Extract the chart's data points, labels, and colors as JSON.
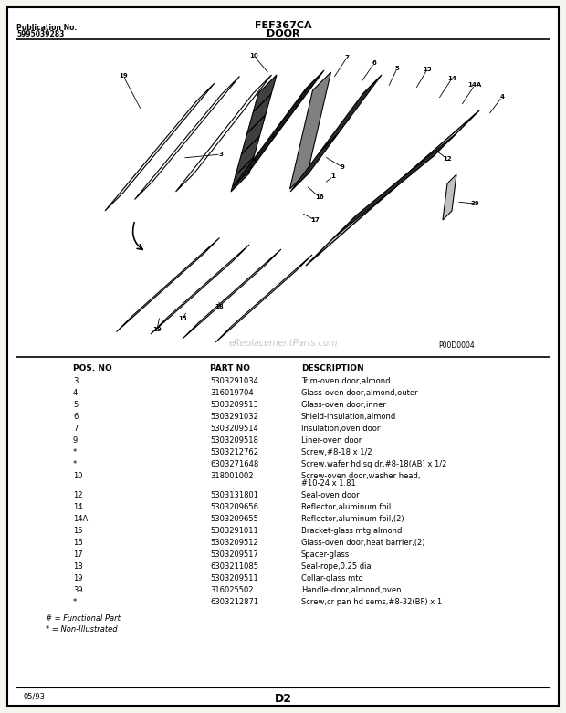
{
  "title": "FEF367CA",
  "subtitle": "DOOR",
  "pub_no_label": "Publication No.",
  "pub_no_value": "5995039283",
  "watermark": "eReplacementParts.com",
  "diagram_label": "P00D0004",
  "footer_left": "05/93",
  "footer_center": "D2",
  "bg_color": "#f0f0f0",
  "border_color": "#000000",
  "columns": [
    "POS. NO",
    "PART NO",
    "DESCRIPTION"
  ],
  "parts": [
    [
      "3",
      "5303291034",
      "Trim-oven door,almond"
    ],
    [
      "4",
      "316019704",
      "Glass-oven door,almond,outer"
    ],
    [
      "5",
      "5303209513",
      "Glass-oven door,inner"
    ],
    [
      "6",
      "5303291032",
      "Shield-insulation,almond"
    ],
    [
      "7",
      "5303209514",
      "Insulation,oven door"
    ],
    [
      "9",
      "5303209518",
      "Liner-oven door"
    ],
    [
      "*",
      "5303212762",
      "Screw,#8-18 x 1/2"
    ],
    [
      "*",
      "6303271648",
      "Screw,wafer hd sq dr,#8-18(AB) x 1/2"
    ],
    [
      "10",
      "318001002",
      "Screw-oven door,washer head,\n#10-24 x 1.81"
    ],
    [
      "12",
      "5303131801",
      "Seal-oven door"
    ],
    [
      "14",
      "5303209656",
      "Reflector,aluminum foil"
    ],
    [
      "14A",
      "5303209655",
      "Reflector,aluminum foil,(2)"
    ],
    [
      "15",
      "5303291011",
      "Bracket-glass mtg,almond"
    ],
    [
      "16",
      "5303209512",
      "Glass-oven door,heat barrier,(2)"
    ],
    [
      "17",
      "5303209517",
      "Spacer-glass"
    ],
    [
      "18",
      "6303211085",
      "Seal-rope,0.25 dia"
    ],
    [
      "19",
      "5303209511",
      "Collar-glass mtg"
    ],
    [
      "39",
      "316025502",
      "Handle-door,almond,oven"
    ],
    [
      "*",
      "6303212871",
      "Screw,cr pan hd sems,#8-32(BF) x 1"
    ]
  ],
  "notes": [
    "# = Functional Part",
    "* = Non-Illustrated"
  ]
}
